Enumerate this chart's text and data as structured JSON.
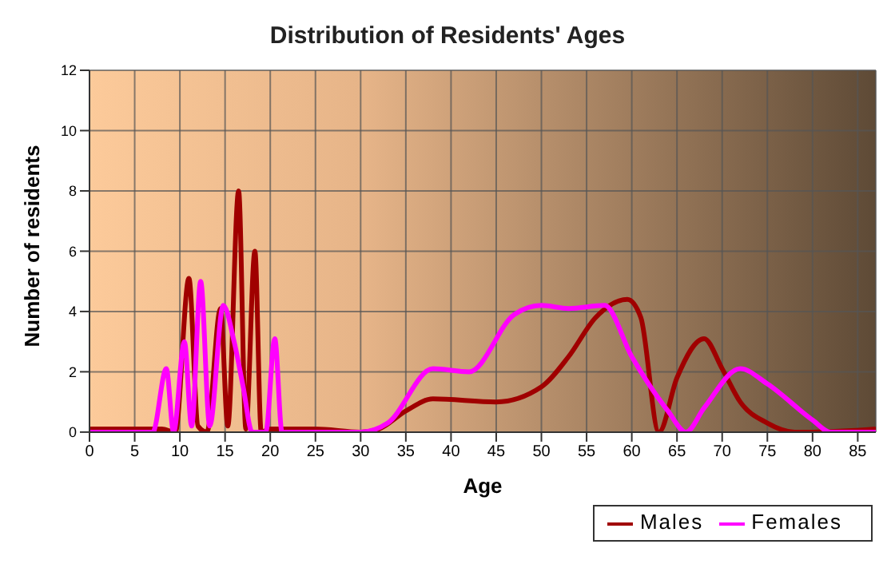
{
  "chart_data": {
    "type": "line",
    "title": "Distribution of Residents' Ages",
    "xlabel": "Age",
    "ylabel": "Number of residents",
    "xlim": [
      0,
      87
    ],
    "xticks": [
      0,
      5,
      10,
      15,
      20,
      25,
      30,
      35,
      40,
      45,
      50,
      55,
      60,
      65,
      70,
      75,
      80,
      85
    ],
    "ylim": [
      0,
      12
    ],
    "yticks": [
      0,
      2,
      4,
      6,
      8,
      10,
      12
    ],
    "grid": true,
    "legend": "bottom right",
    "marker": "none",
    "line_style": "solid",
    "series": [
      {
        "name": "Males",
        "color": "#a00000",
        "x": [
          0,
          4,
          8,
          9.5,
          11,
          12,
          13,
          14.5,
          15.3,
          16.5,
          17.3,
          18.3,
          19,
          20,
          25,
          30,
          32,
          35,
          38,
          45,
          50,
          53,
          56,
          59.5,
          61,
          63,
          65,
          68,
          70,
          72,
          75,
          78,
          80,
          87
        ],
        "values": [
          0.1,
          0.1,
          0.1,
          0,
          5.1,
          0.2,
          0,
          4.1,
          0.2,
          8,
          0.1,
          6,
          0,
          0.1,
          0.1,
          0,
          0.1,
          0.7,
          1.1,
          1,
          1.5,
          2.5,
          3.8,
          4.4,
          3.8,
          0,
          1.8,
          3.1,
          2.1,
          1,
          0.3,
          0,
          0,
          0.1
        ]
      },
      {
        "name": "Females",
        "color": "#ff00ff",
        "x": [
          0,
          7,
          8.5,
          9.3,
          10.5,
          11.3,
          12.3,
          13.3,
          14.8,
          16,
          17,
          18,
          19.5,
          20.5,
          21.3,
          30,
          33,
          38,
          42,
          47,
          50,
          53,
          57,
          60,
          64,
          66,
          68,
          72,
          75,
          80,
          82,
          87
        ],
        "values": [
          0,
          0,
          2.1,
          0,
          3,
          0.2,
          5,
          0.2,
          4.2,
          3,
          1.5,
          0,
          0,
          3.1,
          0,
          0,
          0.3,
          2.1,
          2,
          3.9,
          4.2,
          4.1,
          4.2,
          2.5,
          0.7,
          0,
          0.8,
          2.1,
          1.6,
          0.4,
          0,
          0
        ]
      }
    ]
  }
}
